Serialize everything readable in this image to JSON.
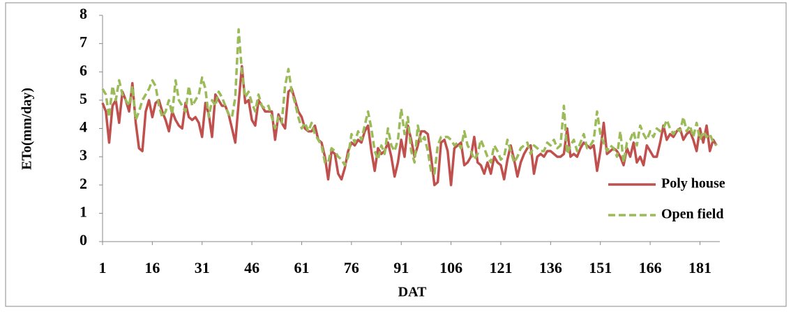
{
  "chart_data": {
    "type": "line",
    "x_label": "DAT",
    "y_label": "ETo(mm/day)",
    "x": [
      1,
      2,
      3,
      4,
      5,
      6,
      7,
      8,
      9,
      10,
      11,
      12,
      13,
      14,
      15,
      16,
      17,
      18,
      19,
      20,
      21,
      22,
      23,
      24,
      25,
      26,
      27,
      28,
      29,
      30,
      31,
      32,
      33,
      34,
      35,
      36,
      37,
      38,
      39,
      40,
      41,
      42,
      43,
      44,
      45,
      46,
      47,
      48,
      49,
      50,
      51,
      52,
      53,
      54,
      55,
      56,
      57,
      58,
      59,
      60,
      61,
      62,
      63,
      64,
      65,
      66,
      67,
      68,
      69,
      70,
      71,
      72,
      73,
      74,
      75,
      76,
      77,
      78,
      79,
      80,
      81,
      82,
      83,
      84,
      85,
      86,
      87,
      88,
      89,
      90,
      91,
      92,
      93,
      94,
      95,
      96,
      97,
      98,
      99,
      100,
      101,
      102,
      103,
      104,
      105,
      106,
      107,
      108,
      109,
      110,
      111,
      112,
      113,
      114,
      115,
      116,
      117,
      118,
      119,
      120,
      121,
      122,
      123,
      124,
      125,
      126,
      127,
      128,
      129,
      130,
      131,
      132,
      133,
      134,
      135,
      136,
      137,
      138,
      139,
      140,
      141,
      142,
      143,
      144,
      145,
      146,
      147,
      148,
      149,
      150,
      151,
      152,
      153,
      154,
      155,
      156,
      157,
      158,
      159,
      160,
      161,
      162,
      163,
      164,
      165,
      166,
      167,
      168,
      169,
      170,
      171,
      172,
      173,
      174,
      175,
      176,
      177,
      178,
      179,
      180,
      181,
      182,
      183,
      184,
      185,
      186
    ],
    "series": [
      {
        "name": "Poly house",
        "color": "#c0504d",
        "dash": false,
        "values": [
          4.9,
          4.6,
          3.5,
          4.8,
          5.0,
          4.2,
          5.3,
          5.0,
          4.6,
          5.6,
          4.2,
          3.3,
          3.2,
          4.6,
          5.0,
          4.4,
          4.9,
          5.0,
          4.6,
          4.3,
          3.9,
          4.6,
          4.3,
          4.1,
          4.0,
          4.9,
          4.4,
          4.3,
          4.4,
          4.2,
          3.7,
          4.9,
          4.5,
          3.7,
          5.2,
          5.0,
          4.8,
          4.8,
          4.5,
          4.0,
          3.5,
          4.9,
          6.2,
          4.9,
          5.0,
          4.3,
          4.1,
          5.0,
          4.8,
          4.6,
          4.6,
          4.6,
          3.6,
          4.5,
          4.2,
          4.0,
          5.3,
          5.4,
          5.0,
          4.6,
          4.4,
          4.0,
          3.9,
          3.9,
          4.1,
          3.6,
          3.5,
          3.0,
          2.2,
          3.2,
          3.1,
          2.4,
          2.2,
          2.6,
          3.2,
          3.5,
          3.4,
          3.6,
          3.5,
          3.9,
          4.1,
          3.2,
          2.5,
          3.3,
          3.1,
          3.2,
          3.5,
          3.0,
          2.3,
          2.8,
          3.6,
          3.0,
          4.1,
          3.6,
          3.0,
          3.4,
          3.9,
          3.9,
          3.8,
          3.0,
          2.0,
          2.1,
          3.5,
          3.6,
          3.2,
          2.0,
          3.3,
          3.4,
          3.5,
          2.7,
          2.8,
          3.0,
          3.7,
          2.8,
          2.7,
          2.4,
          2.8,
          2.4,
          3.0,
          2.8,
          2.7,
          2.2,
          2.9,
          3.4,
          2.9,
          2.3,
          2.8,
          3.1,
          3.3,
          3.4,
          2.4,
          3.0,
          3.1,
          3.0,
          3.2,
          3.2,
          3.1,
          3.0,
          3.0,
          3.1,
          4.0,
          3.0,
          3.1,
          3.0,
          3.3,
          3.5,
          3.4,
          3.3,
          3.4,
          2.5,
          3.2,
          4.2,
          3.1,
          3.2,
          3.3,
          3.2,
          3.0,
          2.7,
          3.3,
          3.0,
          3.5,
          2.8,
          3.0,
          2.7,
          3.4,
          3.2,
          3.0,
          3.0,
          3.5,
          4.1,
          3.6,
          3.8,
          3.7,
          3.9,
          4.0,
          3.6,
          3.8,
          3.9,
          3.6,
          3.2,
          4.0,
          3.5,
          4.1,
          3.2,
          3.6,
          3.4
        ]
      },
      {
        "name": "Open field",
        "color": "#9bbb59",
        "dash": true,
        "values": [
          5.4,
          5.2,
          4.4,
          5.5,
          5.0,
          5.7,
          5.2,
          5.0,
          4.8,
          5.5,
          4.3,
          4.6,
          5.0,
          5.2,
          5.4,
          5.7,
          5.5,
          4.8,
          4.4,
          4.6,
          5.0,
          4.5,
          5.7,
          5.0,
          4.8,
          4.6,
          5.5,
          4.8,
          5.0,
          5.2,
          5.8,
          5.4,
          4.4,
          5.0,
          4.8,
          5.3,
          5.1,
          4.8,
          4.5,
          4.4,
          5.1,
          7.5,
          6.0,
          5.1,
          5.3,
          4.9,
          4.6,
          5.2,
          4.8,
          4.7,
          4.8,
          4.4,
          4.0,
          4.4,
          4.2,
          5.5,
          6.1,
          5.3,
          4.9,
          4.4,
          4.0,
          4.2,
          3.9,
          4.2,
          3.8,
          3.6,
          3.4,
          2.8,
          2.8,
          3.3,
          3.2,
          3.0,
          2.9,
          2.7,
          3.0,
          3.8,
          3.5,
          3.9,
          3.6,
          4.1,
          4.6,
          4.0,
          3.2,
          2.9,
          3.4,
          3.1,
          4.0,
          3.4,
          3.2,
          3.6,
          4.7,
          3.8,
          4.4,
          3.2,
          2.8,
          4.1,
          3.5,
          3.7,
          3.2,
          2.5,
          2.4,
          3.4,
          3.7,
          3.7,
          3.7,
          3.6,
          3.4,
          3.5,
          3.3,
          3.9,
          3.4,
          3.2,
          2.9,
          3.1,
          3.6,
          3.3,
          3.0,
          2.8,
          3.4,
          3.2,
          2.9,
          3.0,
          3.6,
          3.2,
          2.8,
          3.0,
          3.3,
          3.4,
          3.5,
          3.1,
          3.4,
          3.3,
          3.2,
          3.2,
          3.5,
          3.4,
          3.6,
          3.3,
          3.4,
          4.8,
          3.1,
          3.4,
          3.6,
          3.2,
          3.5,
          3.8,
          3.3,
          3.4,
          3.6,
          4.6,
          3.8,
          3.5,
          3.2,
          3.4,
          3.3,
          3.0,
          3.9,
          2.8,
          3.5,
          3.6,
          3.9,
          3.4,
          4.1,
          3.8,
          3.6,
          3.9,
          3.7,
          4.0,
          3.9,
          4.0,
          4.3,
          4.0,
          3.8,
          4.0,
          3.9,
          4.4,
          3.9,
          4.1,
          3.7,
          4.2,
          3.6,
          3.9,
          3.7,
          3.8,
          3.5,
          3.4
        ]
      }
    ],
    "xlim": [
      1,
      187
    ],
    "xticks": [
      1,
      16,
      31,
      46,
      61,
      76,
      91,
      106,
      121,
      136,
      151,
      166,
      181
    ],
    "ylim": [
      0,
      8
    ],
    "yticks": [
      0,
      1,
      2,
      3,
      4,
      5,
      6,
      7,
      8
    ],
    "legend": "right"
  }
}
